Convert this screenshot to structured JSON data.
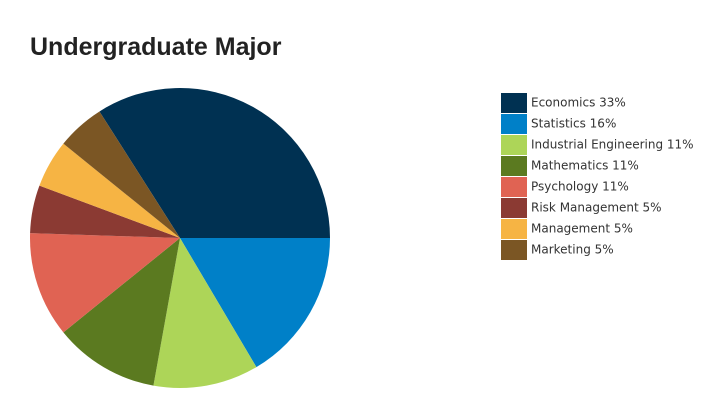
{
  "chart_data": {
    "type": "pie",
    "title": "Undergraduate Major",
    "categories": [
      "Economics 33%",
      "Statistics 16%",
      "Industrial Engineering 11%",
      "Mathematics 11%",
      "Psychology 11%",
      "Risk Management 5%",
      "Management 5%",
      "Marketing 5%"
    ],
    "values": [
      33,
      16,
      11,
      11,
      11,
      5,
      5,
      5
    ],
    "colors": [
      "#003152",
      "#0080c8",
      "#add558",
      "#5b7a20",
      "#e06353",
      "#8b3a33",
      "#f6b444",
      "#7b5624"
    ],
    "legend": "right"
  }
}
